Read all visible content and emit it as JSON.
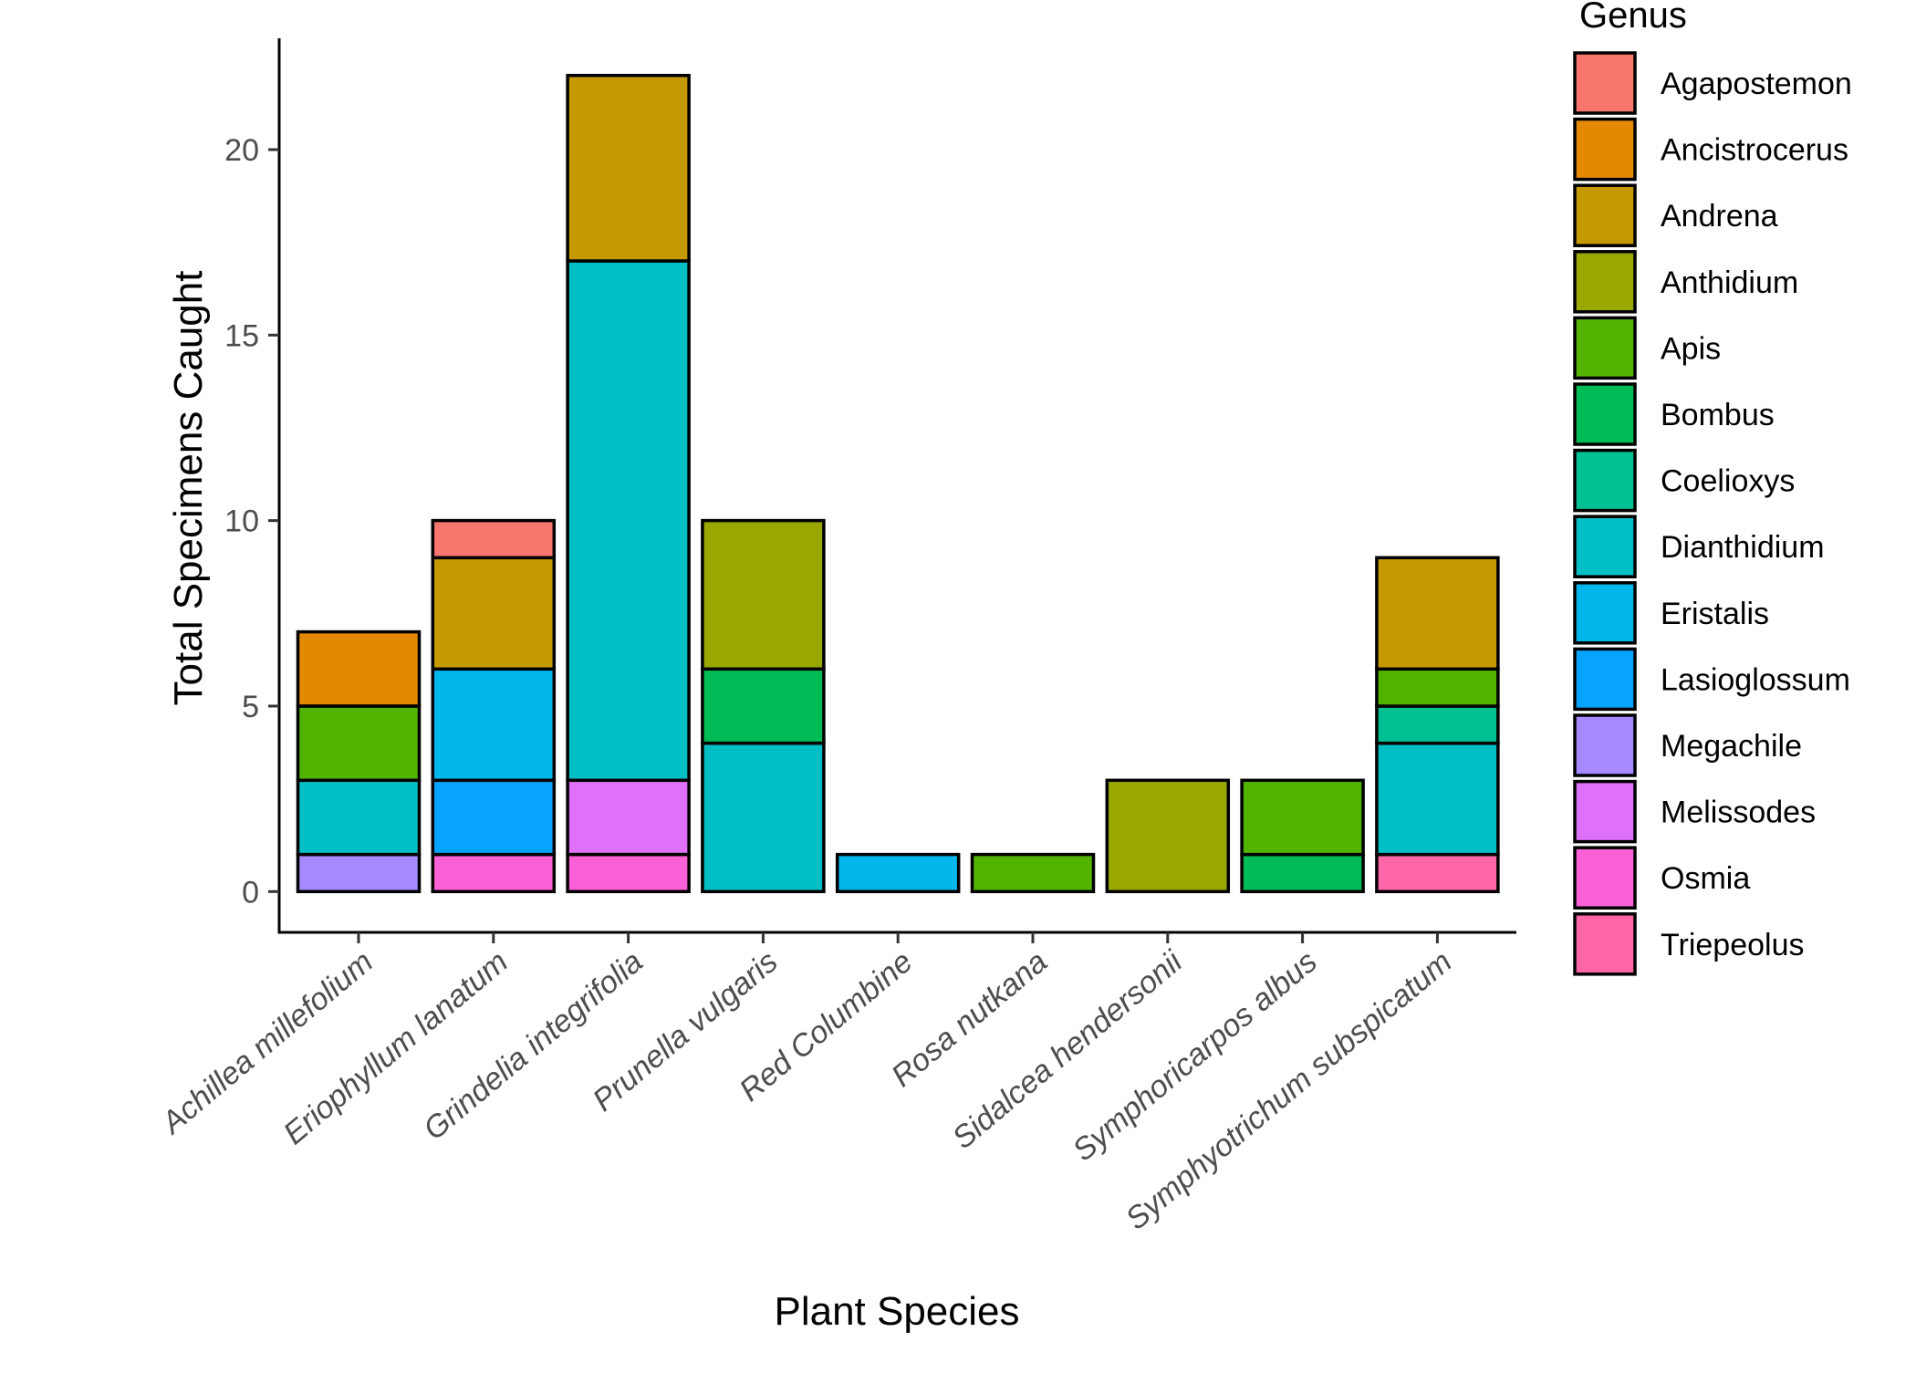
{
  "chart_data": {
    "type": "bar",
    "stacked": true,
    "xlabel": "Plant Species",
    "ylabel": "Total Specimens Caught",
    "ylim": [
      -1.1,
      23
    ],
    "yticks": [
      0,
      5,
      10,
      15,
      20
    ],
    "grid": false,
    "legend_position": "right",
    "legend_title": "Genus",
    "categories": [
      "Achillea millefolium",
      "Eriophyllum lanatum",
      "Grindelia integrifolia",
      "Prunella vulgaris",
      "Red Columbine",
      "Rosa nutkana",
      "Sidalcea hendersonii",
      "Symphoricarpos albus",
      "Symphyotrichum subspicatum"
    ],
    "series": [
      {
        "name": "Agapostemon",
        "color": "#F8766D",
        "values": [
          0,
          1,
          0,
          0,
          0,
          0,
          0,
          0,
          0
        ]
      },
      {
        "name": "Ancistrocerus",
        "color": "#E38900",
        "values": [
          2,
          0,
          0,
          0,
          0,
          0,
          0,
          0,
          0
        ]
      },
      {
        "name": "Andrena",
        "color": "#C49A00",
        "values": [
          0,
          3,
          5,
          0,
          0,
          0,
          0,
          0,
          3
        ]
      },
      {
        "name": "Anthidium",
        "color": "#99A800",
        "values": [
          0,
          0,
          0,
          4,
          0,
          0,
          3,
          0,
          0
        ]
      },
      {
        "name": "Apis",
        "color": "#53B400",
        "values": [
          2,
          0,
          0,
          0,
          0,
          1,
          0,
          2,
          1
        ]
      },
      {
        "name": "Bombus",
        "color": "#00BC56",
        "values": [
          0,
          0,
          0,
          2,
          0,
          0,
          0,
          1,
          0
        ]
      },
      {
        "name": "Coelioxys",
        "color": "#00C094",
        "values": [
          0,
          0,
          0,
          0,
          0,
          0,
          0,
          0,
          1
        ]
      },
      {
        "name": "Dianthidium",
        "color": "#00BFC4",
        "values": [
          2,
          0,
          14,
          4,
          0,
          0,
          0,
          0,
          3
        ]
      },
      {
        "name": "Eristalis",
        "color": "#00B6EB",
        "values": [
          0,
          3,
          0,
          0,
          1,
          0,
          0,
          0,
          0
        ]
      },
      {
        "name": "Lasioglossum",
        "color": "#06A4FF",
        "values": [
          0,
          2,
          0,
          0,
          0,
          0,
          0,
          0,
          0
        ]
      },
      {
        "name": "Megachile",
        "color": "#A58AFF",
        "values": [
          1,
          0,
          0,
          0,
          0,
          0,
          0,
          0,
          0
        ]
      },
      {
        "name": "Melissodes",
        "color": "#DF70F8",
        "values": [
          0,
          0,
          2,
          0,
          0,
          0,
          0,
          0,
          0
        ]
      },
      {
        "name": "Osmia",
        "color": "#FB61D7",
        "values": [
          0,
          1,
          1,
          0,
          0,
          0,
          0,
          0,
          0
        ]
      },
      {
        "name": "Triepeolus",
        "color": "#FF66A8",
        "values": [
          0,
          0,
          0,
          0,
          0,
          0,
          0,
          0,
          1
        ]
      }
    ]
  }
}
